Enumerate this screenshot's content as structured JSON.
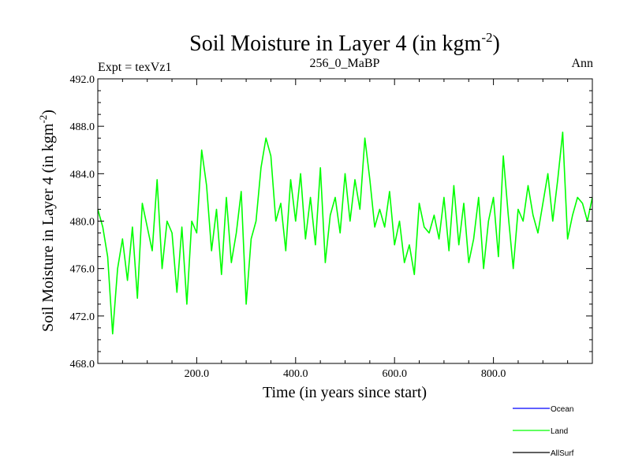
{
  "chart_data": {
    "type": "line",
    "title_main": "Soil Moisture in Layer 4 (in kgm",
    "title_sup": "-2",
    "title_close": ")",
    "left_label": "Expt = texVz1",
    "center_label": "256_0_MaBP",
    "right_label": "Ann",
    "xlabel": "Time (in years since start)",
    "ylabel_main": "Soil Moisture in Layer 4 (in kgm",
    "ylabel_sup": "-2",
    "ylabel_close": ")",
    "xlim": [
      0,
      1000
    ],
    "ylim": [
      468,
      492
    ],
    "x_ticks": [
      200,
      400,
      600,
      800
    ],
    "x_tick_labels": [
      "200.0",
      "400.0",
      "600.0",
      "800.0"
    ],
    "y_ticks": [
      468,
      472,
      476,
      480,
      484,
      488,
      492
    ],
    "y_tick_labels": [
      "468.0",
      "472.0",
      "476.0",
      "480.0",
      "484.0",
      "488.0",
      "492.0"
    ],
    "legend": [
      {
        "name": "Ocean",
        "color": "#0000ff"
      },
      {
        "name": "Land",
        "color": "#00ff00"
      },
      {
        "name": "AllSurf",
        "color": "#000000"
      }
    ],
    "series": [
      {
        "name": "Land",
        "color": "#00ff00",
        "x": [
          0,
          10,
          20,
          30,
          40,
          50,
          60,
          70,
          80,
          90,
          100,
          110,
          120,
          130,
          140,
          150,
          160,
          170,
          180,
          190,
          200,
          210,
          220,
          230,
          240,
          250,
          260,
          270,
          280,
          290,
          300,
          310,
          320,
          330,
          340,
          350,
          360,
          370,
          380,
          390,
          400,
          410,
          420,
          430,
          440,
          450,
          460,
          470,
          480,
          490,
          500,
          510,
          520,
          530,
          540,
          550,
          560,
          570,
          580,
          590,
          600,
          610,
          620,
          630,
          640,
          650,
          660,
          670,
          680,
          690,
          700,
          710,
          720,
          730,
          740,
          750,
          760,
          770,
          780,
          790,
          800,
          810,
          820,
          830,
          840,
          850,
          860,
          870,
          880,
          890,
          900,
          910,
          920,
          930,
          940,
          950,
          960,
          970,
          980,
          990,
          1000
        ],
        "values": [
          481.0,
          479.5,
          477.0,
          470.5,
          476.0,
          478.5,
          475.0,
          479.5,
          473.5,
          481.5,
          479.5,
          477.5,
          483.5,
          476.0,
          480.0,
          479.0,
          474.0,
          479.5,
          473.0,
          480.0,
          479.0,
          486.0,
          483.0,
          477.5,
          481.0,
          475.5,
          482.0,
          476.5,
          479.0,
          482.5,
          473.0,
          478.5,
          480.0,
          484.5,
          487.0,
          485.5,
          480.0,
          481.5,
          477.5,
          483.5,
          480.0,
          484.0,
          478.5,
          482.0,
          478.0,
          484.5,
          476.5,
          480.5,
          482.0,
          479.0,
          484.0,
          480.0,
          483.5,
          481.0,
          487.0,
          483.5,
          479.5,
          481.0,
          479.5,
          482.5,
          478.0,
          480.0,
          476.5,
          478.0,
          475.5,
          481.5,
          479.5,
          479.0,
          480.5,
          478.5,
          482.0,
          477.5,
          483.0,
          478.0,
          481.5,
          476.5,
          478.5,
          482.0,
          476.0,
          480.0,
          482.0,
          477.0,
          485.5,
          480.5,
          476.0,
          481.0,
          480.0,
          483.0,
          480.5,
          479.0,
          481.5,
          484.0,
          480.0,
          483.5,
          487.5,
          478.5,
          480.5,
          482.0,
          481.5,
          480.0,
          482.0
        ]
      }
    ]
  }
}
